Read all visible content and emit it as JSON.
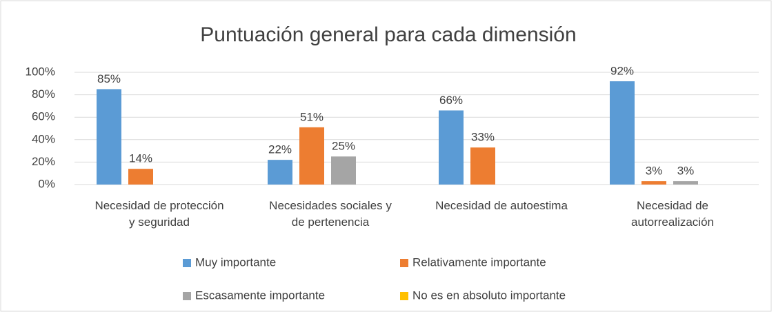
{
  "chart_data": {
    "type": "bar",
    "title": "Puntuación general para cada dimensión",
    "categories": [
      "Necesidad de protección\ny seguridad",
      "Necesidades sociales y\nde pertenencia",
      "Necesidad de autoestima",
      "Necesidad de\nautorrealización"
    ],
    "series": [
      {
        "name": "Muy importante",
        "color": "#5b9bd5",
        "values": [
          85,
          22,
          66,
          92
        ],
        "value_labels": [
          "85%",
          "22%",
          "66%",
          "92%"
        ]
      },
      {
        "name": "Relativamente importante",
        "color": "#ed7d31",
        "values": [
          14,
          51,
          33,
          3
        ],
        "value_labels": [
          "14%",
          "51%",
          "33%",
          "3%"
        ]
      },
      {
        "name": "Escasamente importante",
        "color": "#a5a5a5",
        "values": [
          null,
          25,
          null,
          3
        ],
        "value_labels": [
          null,
          "25%",
          null,
          "3%"
        ]
      },
      {
        "name": "No es en absoluto importante",
        "color": "#ffc000",
        "values": [
          null,
          null,
          null,
          null
        ],
        "value_labels": [
          null,
          null,
          null,
          null
        ]
      }
    ],
    "ylim": [
      0,
      100
    ],
    "yticks": [
      {
        "value": 0,
        "label": "0%"
      },
      {
        "value": 20,
        "label": "20%"
      },
      {
        "value": 40,
        "label": "40%"
      },
      {
        "value": 60,
        "label": "60%"
      },
      {
        "value": 80,
        "label": "80%"
      },
      {
        "value": 100,
        "label": "100%"
      }
    ],
    "grid": true,
    "legend": "bottom"
  }
}
